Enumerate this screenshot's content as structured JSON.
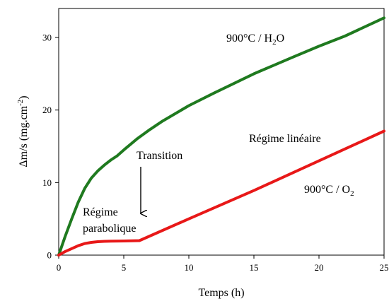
{
  "chart_data": {
    "type": "line",
    "xlabel": "Temps (h)",
    "ylabel": "Δm/s (mg.cm",
    "ylabel_sup": "-2",
    "ylabel_end": ")",
    "xlim": [
      0,
      25
    ],
    "ylim": [
      0,
      34
    ],
    "x_ticks": [
      0,
      5,
      10,
      15,
      20,
      25
    ],
    "y_ticks": [
      0,
      10,
      20,
      30
    ],
    "grid": false,
    "series": [
      {
        "name": "900°C / H2O",
        "color": "#1f7a1f",
        "x": [
          0,
          0.5,
          1,
          1.5,
          2,
          2.5,
          3,
          3.5,
          4,
          4.5,
          5,
          6,
          7,
          8,
          10,
          12,
          15,
          18,
          20,
          22,
          25
        ],
        "y": [
          0,
          2.6,
          5.0,
          7.3,
          9.2,
          10.6,
          11.6,
          12.4,
          13.1,
          13.7,
          14.5,
          16.0,
          17.3,
          18.5,
          20.6,
          22.4,
          25.0,
          27.3,
          28.8,
          30.2,
          32.7
        ]
      },
      {
        "name": "900°C / O2",
        "color": "#e81818",
        "x": [
          0,
          0.5,
          1,
          1.5,
          2,
          2.5,
          3,
          3.5,
          4,
          5,
          6.2,
          10,
          15,
          20,
          25
        ],
        "y": [
          0,
          0.5,
          0.9,
          1.3,
          1.6,
          1.75,
          1.85,
          1.9,
          1.92,
          1.95,
          2.0,
          5.0,
          8.9,
          13.0,
          17.1
        ]
      }
    ],
    "annotations": {
      "h2o_label": "900°C / H",
      "h2o_sub": "2",
      "h2o_end": "O",
      "o2_label": "900°C / O",
      "o2_sub": "2",
      "transition": "Transition",
      "regime_lineaire": "Régime linéaire",
      "regime_para_1": "Régime",
      "regime_para_2": "parabolique"
    }
  }
}
